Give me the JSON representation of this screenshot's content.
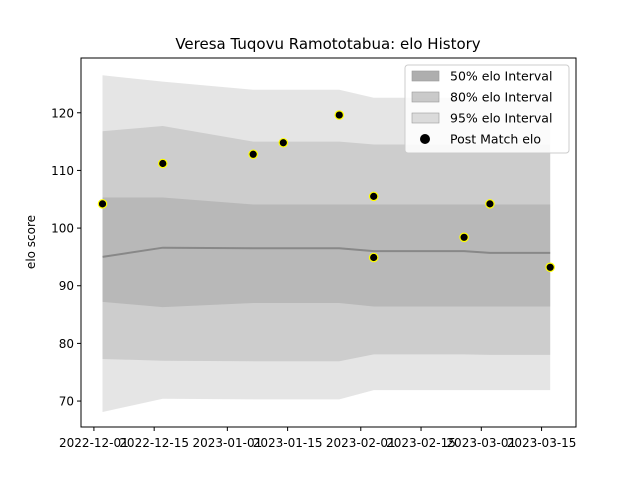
{
  "chart_data": {
    "type": "line",
    "title": "Veresa Tuqovu Ramototabua: elo History",
    "xlabel": "",
    "ylabel": "elo score",
    "x_ticks": [
      "2022-12-01",
      "2022-12-15",
      "2023-01-01",
      "2023-01-15",
      "2023-02-01",
      "2023-02-15",
      "2023-03-01",
      "2023-03-15"
    ],
    "y_ticks": [
      70,
      80,
      90,
      100,
      110,
      120
    ],
    "xlim": [
      "2022-11-28",
      "2023-03-23"
    ],
    "ylim": [
      65.5,
      129.5
    ],
    "grid": false,
    "legend_position": "top-right",
    "legend": [
      "50% elo Interval",
      "80% elo Interval",
      "95% elo Interval",
      "Post Match elo"
    ],
    "colors": {
      "band_50": "#aaaaaa",
      "band_80": "#bdbdbd",
      "band_95": "#d3d3d3",
      "mean_line": "#888888",
      "marker_fill": "#000000",
      "marker_edge": "#ffff00"
    },
    "dates": [
      "2022-12-03",
      "2022-12-17",
      "2023-01-07",
      "2023-01-14",
      "2023-01-27",
      "2023-02-04",
      "2023-02-25",
      "2023-03-03",
      "2023-03-17"
    ],
    "mean": [
      95.0,
      96.6,
      96.5,
      96.5,
      96.5,
      96.0,
      96.0,
      95.7,
      95.7
    ],
    "band_50_low": [
      87.2,
      86.3,
      87.0,
      87.0,
      87.0,
      86.4,
      86.4,
      86.4,
      86.4
    ],
    "band_50_high": [
      105.3,
      105.3,
      104.1,
      104.1,
      104.1,
      104.1,
      104.1,
      104.1,
      104.1
    ],
    "band_80_low": [
      77.3,
      77.0,
      76.9,
      76.9,
      76.9,
      78.1,
      78.1,
      78.0,
      78.0
    ],
    "band_80_high": [
      116.8,
      117.7,
      115.0,
      115.0,
      115.0,
      114.5,
      114.5,
      114.5,
      114.5
    ],
    "band_95_low": [
      68.1,
      70.4,
      70.3,
      70.3,
      70.3,
      71.9,
      71.9,
      71.9,
      71.9
    ],
    "band_95_high": [
      126.5,
      125.4,
      124.0,
      124.0,
      124.0,
      122.6,
      122.6,
      122.6,
      122.6
    ],
    "post_match": [
      {
        "x": "2022-12-03",
        "y": 104.2
      },
      {
        "x": "2022-12-17",
        "y": 111.2
      },
      {
        "x": "2023-01-07",
        "y": 112.8
      },
      {
        "x": "2023-01-14",
        "y": 114.8
      },
      {
        "x": "2023-01-27",
        "y": 119.6
      },
      {
        "x": "2023-02-04",
        "y": 105.5
      },
      {
        "x": "2023-02-04",
        "y": 94.9
      },
      {
        "x": "2023-02-25",
        "y": 98.4
      },
      {
        "x": "2023-03-03",
        "y": 104.2
      },
      {
        "x": "2023-03-17",
        "y": 93.2
      }
    ]
  }
}
